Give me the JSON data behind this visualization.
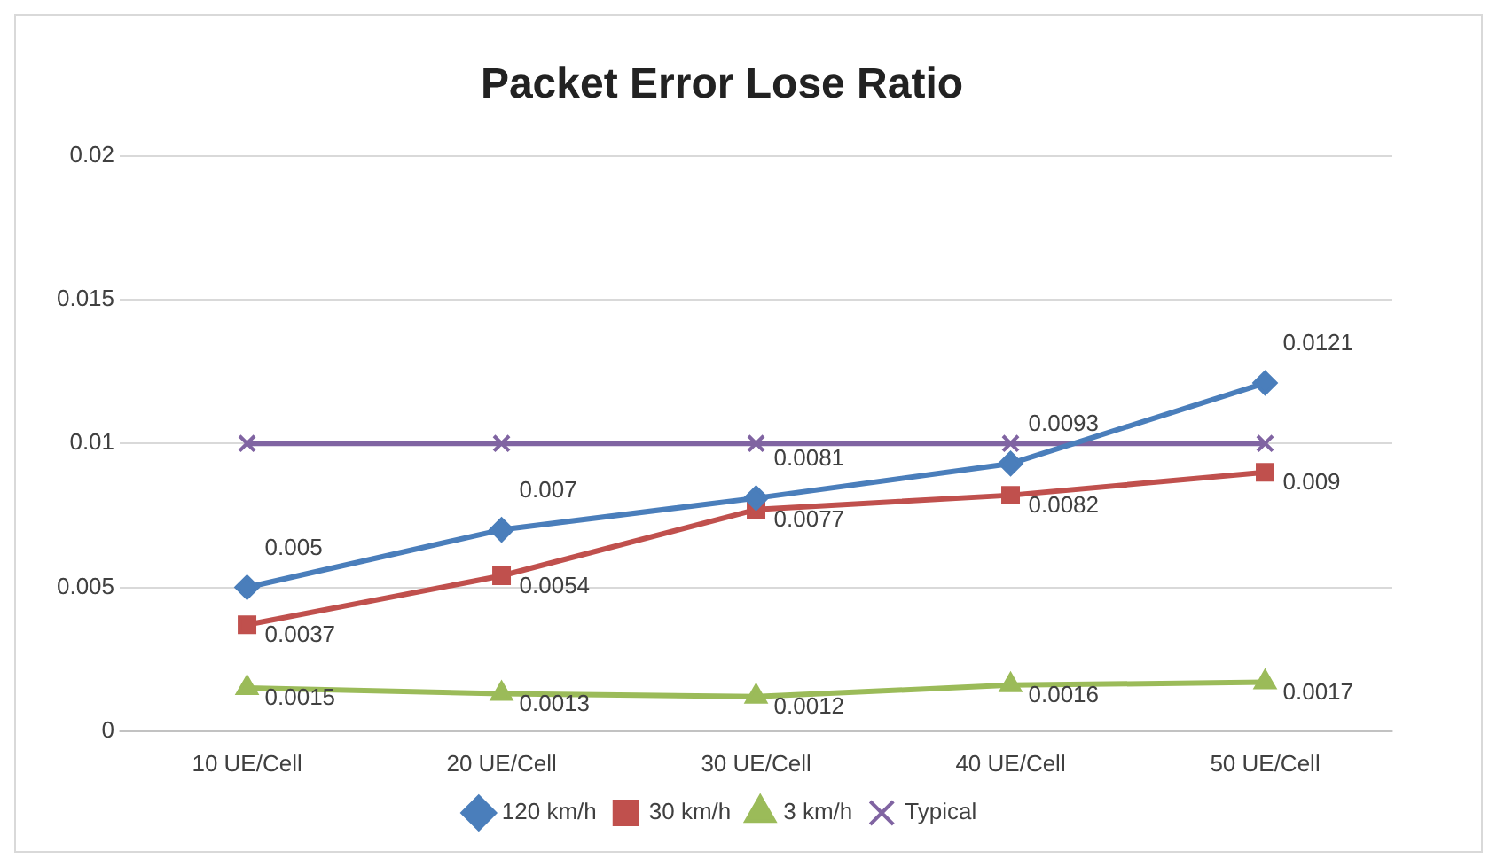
{
  "chart_data": {
    "type": "line",
    "title": "Packet Error Lose Ratio",
    "categories": [
      "10 UE/Cell",
      "20 UE/Cell",
      "30 UE/Cell",
      "40 UE/Cell",
      "50 UE/Cell"
    ],
    "series": [
      {
        "name": "120 km/h",
        "color": "#4a7ebb",
        "marker": "diamond",
        "values": [
          0.005,
          0.007,
          0.0081,
          0.0093,
          0.0121
        ],
        "value_labels": [
          "0.005",
          "0.007",
          "0.0081",
          "0.0093",
          "0.0121"
        ]
      },
      {
        "name": "30 km/h",
        "color": "#c0504d",
        "marker": "square",
        "values": [
          0.0037,
          0.0054,
          0.0077,
          0.0082,
          0.009
        ],
        "value_labels": [
          "0.0037",
          "0.0054",
          "0.0077",
          "0.0082",
          "0.009"
        ]
      },
      {
        "name": "3 km/h",
        "color": "#9bbb59",
        "marker": "triangle",
        "values": [
          0.0015,
          0.0013,
          0.0012,
          0.0016,
          0.0017
        ],
        "value_labels": [
          "0.0015",
          "0.0013",
          "0.0012",
          "0.0016",
          "0.0017"
        ]
      },
      {
        "name": "Typical",
        "color": "#8064a2",
        "marker": "cross",
        "values": [
          0.01,
          0.01,
          0.01,
          0.01,
          0.01
        ]
      }
    ],
    "ylim": [
      0,
      0.02
    ],
    "yticks": [
      0,
      0.005,
      0.01,
      0.015,
      0.02
    ],
    "grid": "y",
    "legend": "bottom"
  }
}
